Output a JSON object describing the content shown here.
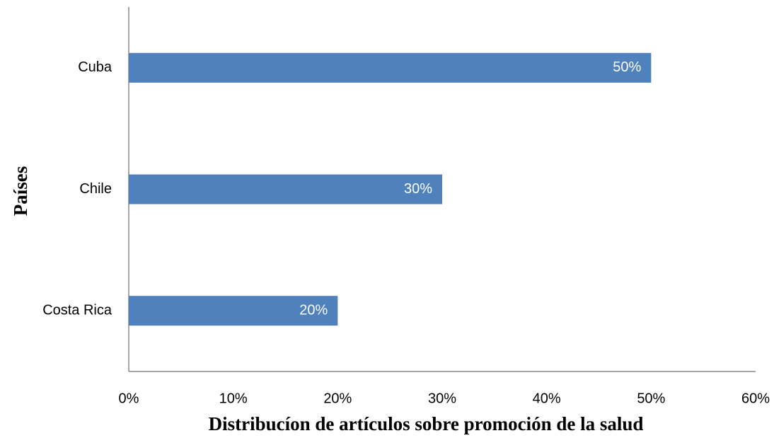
{
  "chart_data": {
    "type": "barh",
    "xlabel": "Distribucíon de artículos sobre promoción de la salud",
    "ylabel": "Países",
    "categories": [
      "Cuba",
      "Chile",
      "Costa Rica"
    ],
    "values": [
      50,
      30,
      20
    ],
    "value_labels": [
      "50%",
      "30%",
      "20%"
    ],
    "color": "#4f81bd",
    "xlim": [
      0,
      60
    ],
    "xticks": [
      {
        "value": 0,
        "label": "0%"
      },
      {
        "value": 10,
        "label": "10%"
      },
      {
        "value": 20,
        "label": "20%"
      },
      {
        "value": 30,
        "label": "30%"
      },
      {
        "value": 40,
        "label": "40%"
      },
      {
        "value": 50,
        "label": "50%"
      },
      {
        "value": 60,
        "label": "60%"
      }
    ],
    "grid": false
  }
}
